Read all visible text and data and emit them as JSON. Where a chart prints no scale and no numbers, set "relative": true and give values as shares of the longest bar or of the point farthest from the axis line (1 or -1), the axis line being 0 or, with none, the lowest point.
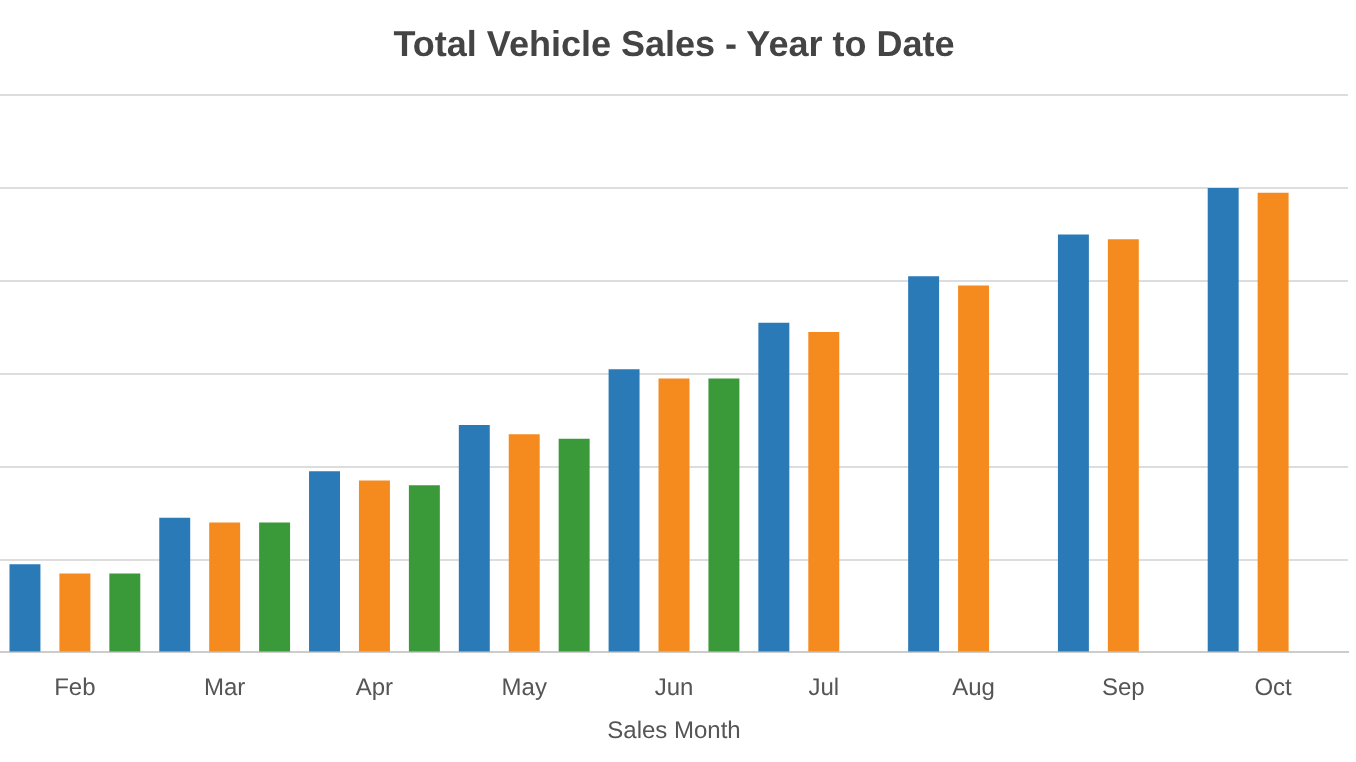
{
  "chart_data": {
    "type": "bar",
    "title": "Total Vehicle Sales - Year to Date",
    "xlabel": "Sales Month",
    "relative": true,
    "grid": "y",
    "legend": false,
    "categories": [
      "Feb",
      "Mar",
      "Apr",
      "May",
      "Jun",
      "Jul",
      "Aug",
      "Sep",
      "Oct"
    ],
    "series": [
      {
        "color": "#2a7ab8",
        "values": [
          0.19,
          0.29,
          0.39,
          0.49,
          0.61,
          0.71,
          0.81,
          0.9,
          1
        ]
      },
      {
        "color": "#f58a1f",
        "values": [
          0.17,
          0.28,
          0.37,
          0.47,
          0.59,
          0.69,
          0.79,
          0.89,
          0.99
        ]
      },
      {
        "color": "#3a9a3a",
        "values": [
          0.17,
          0.28,
          0.36,
          0.46,
          0.59,
          null,
          null,
          null,
          null
        ]
      }
    ]
  }
}
